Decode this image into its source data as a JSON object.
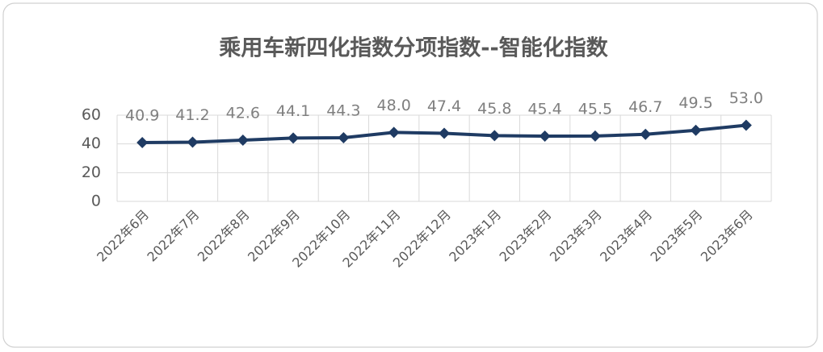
{
  "chart_data": {
    "type": "line",
    "title": "乘用车新四化指数分项指数--智能化指数",
    "categories": [
      "2022年6月",
      "2022年7月",
      "2022年8月",
      "2022年9月",
      "2022年10月",
      "2022年11月",
      "2022年12月",
      "2023年1月",
      "2023年2月",
      "2023年3月",
      "2023年4月",
      "2023年5月",
      "2023年6月"
    ],
    "values": [
      40.9,
      41.2,
      42.6,
      44.1,
      44.3,
      48.0,
      47.4,
      45.8,
      45.4,
      45.5,
      46.7,
      49.5,
      53.0
    ],
    "value_labels": [
      "40.9",
      "41.2",
      "42.6",
      "44.1",
      "44.3",
      "48.0",
      "47.4",
      "45.8",
      "45.4",
      "45.5",
      "46.7",
      "49.5",
      "53.0"
    ],
    "color": "#1f3b63",
    "ylim": [
      0,
      60
    ],
    "yticks": [
      0,
      20,
      40,
      60
    ],
    "grid": true
  }
}
